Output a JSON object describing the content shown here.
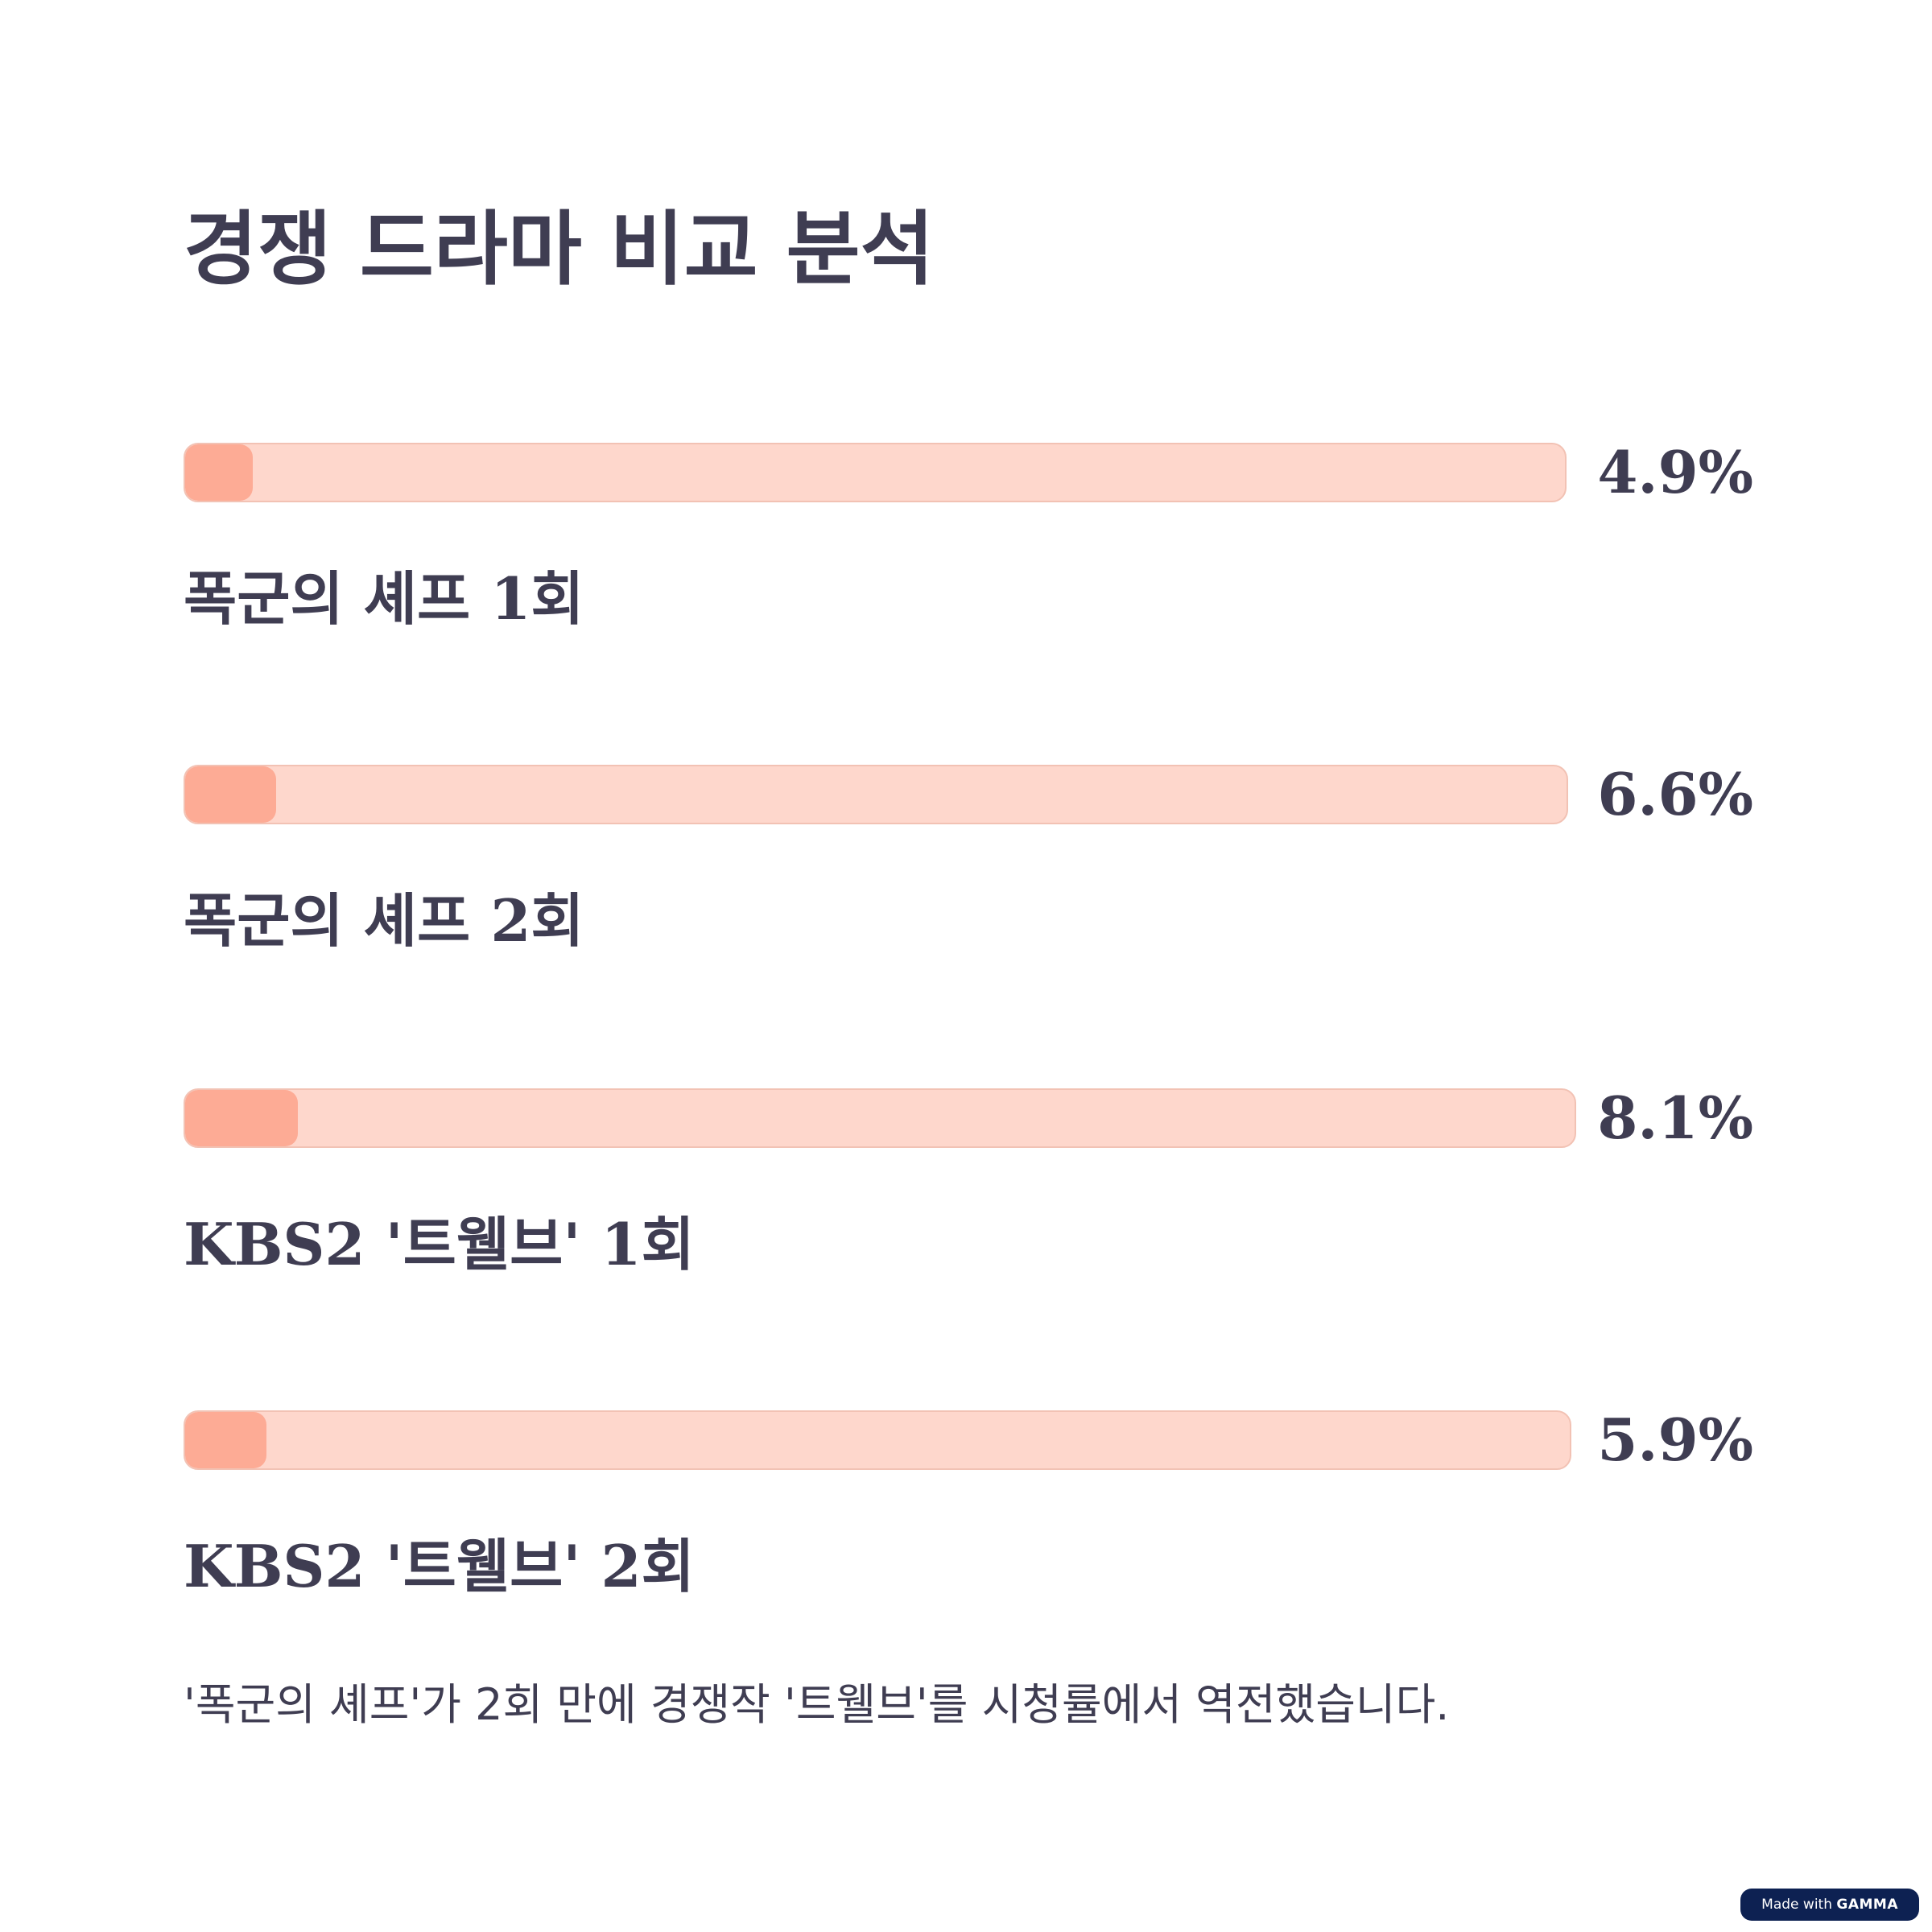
{
  "title": "경쟁 드라마 비교 분석",
  "chart_data": {
    "type": "bar",
    "orientation": "horizontal",
    "title": "경쟁 드라마 비교 분석",
    "unit": "%",
    "categories": [
      "폭군의 셰프 1회",
      "폭군의 셰프 2회",
      "KBS2 '트웰브' 1회",
      "KBS2 '트웰브' 2회"
    ],
    "values": [
      4.9,
      6.6,
      8.1,
      5.9
    ],
    "value_labels": [
      "4.9%",
      "6.6%",
      "8.1%",
      "5.9%"
    ],
    "xlim": [
      0,
      100
    ],
    "grid": false,
    "colors": {
      "track": "#fed7cc",
      "fill": "#fdab95",
      "text": "#3f3d52"
    }
  },
  "summary": "'폭군의 셰프'가 2회 만에 경쟁작 '트웰브'를 시청률에서 역전했습니다.",
  "badge": {
    "prefix": "Made with",
    "brand": "GAMMA"
  }
}
